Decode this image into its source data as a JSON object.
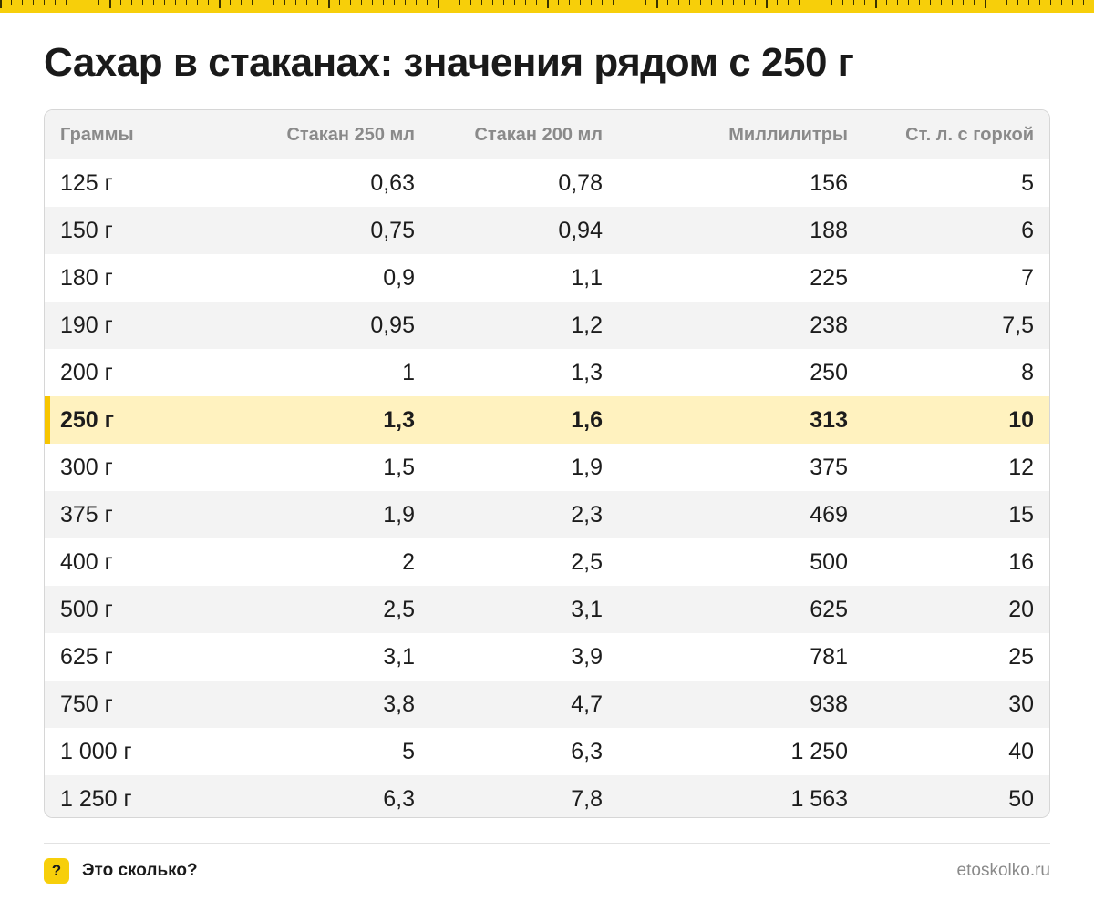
{
  "title": "Сахар в стаканах: значения рядом с 250 г",
  "colors": {
    "accent": "#f7cf0a",
    "highlight_row": "#fff2bf",
    "highlight_marker": "#f7c500"
  },
  "table": {
    "headers": [
      "Граммы",
      "Стакан 250 мл",
      "Стакан 200 мл",
      "Миллилитры",
      "Ст. л. с горкой"
    ],
    "highlight_index": 5,
    "rows": [
      [
        "125 г",
        "0,63",
        "0,78",
        "156",
        "5"
      ],
      [
        "150 г",
        "0,75",
        "0,94",
        "188",
        "6"
      ],
      [
        "180 г",
        "0,9",
        "1,1",
        "225",
        "7"
      ],
      [
        "190 г",
        "0,95",
        "1,2",
        "238",
        "7,5"
      ],
      [
        "200 г",
        "1",
        "1,3",
        "250",
        "8"
      ],
      [
        "250 г",
        "1,3",
        "1,6",
        "313",
        "10"
      ],
      [
        "300 г",
        "1,5",
        "1,9",
        "375",
        "12"
      ],
      [
        "375 г",
        "1,9",
        "2,3",
        "469",
        "15"
      ],
      [
        "400 г",
        "2",
        "2,5",
        "500",
        "16"
      ],
      [
        "500 г",
        "2,5",
        "3,1",
        "625",
        "20"
      ],
      [
        "625 г",
        "3,1",
        "3,9",
        "781",
        "25"
      ],
      [
        "750 г",
        "3,8",
        "4,7",
        "938",
        "30"
      ],
      [
        "1 000 г",
        "5",
        "6,3",
        "1 250",
        "40"
      ],
      [
        "1 250 г",
        "6,3",
        "7,8",
        "1 563",
        "50"
      ]
    ]
  },
  "footer": {
    "badge": "?",
    "brand": "Это сколько?",
    "site": "etoskolko.ru"
  }
}
